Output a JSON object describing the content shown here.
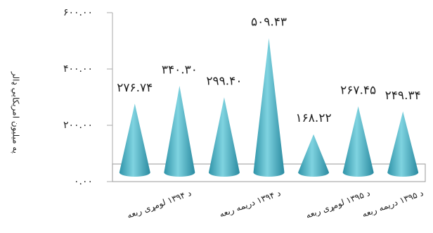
{
  "chart_data": {
    "type": "cone",
    "y_axis_label": "په میلیون امریکایي ډالر",
    "categories": [
      "د ۱۳۹۴ لومړی ربعه",
      null,
      "د ۱۳۹۴ دریمه ربعه",
      null,
      "د ۱۳۹۵ لومړی ربعه",
      null,
      "د ۱۳۹۵ دریمه ربعه"
    ],
    "values": [
      276.74,
      340.3,
      299.4,
      509.43,
      168.22,
      267.45,
      249.34
    ],
    "value_labels": [
      "۲۷۶.۷۴",
      "۳۴۰.۳۰",
      "۲۹۹.۴۰",
      "۵۰۹.۴۳",
      "۱۶۸.۲۲",
      "۲۶۷.۴۵",
      "۲۴۹.۳۴"
    ],
    "color": "#4fb9cc",
    "ylim": [
      0,
      600
    ],
    "yticks": [
      {
        "value": 0,
        "label": "۰.۰۰"
      },
      {
        "value": 200,
        "label": "۲۰۰.۰۰"
      },
      {
        "value": 400,
        "label": "۴۰۰.۰۰"
      },
      {
        "value": 600,
        "label": "۶۰۰.۰۰"
      }
    ]
  }
}
